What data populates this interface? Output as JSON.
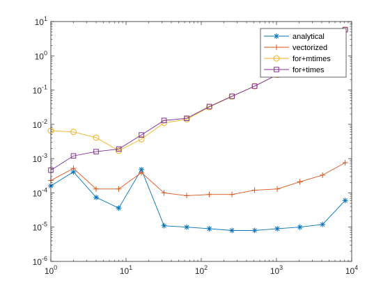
{
  "chart_data": {
    "type": "line",
    "xscale": "log",
    "yscale": "log",
    "xlim": [
      1,
      10000
    ],
    "ylim": [
      1e-06,
      10
    ],
    "grid": false,
    "legend_position": "top-right",
    "x_ticks": [
      {
        "value": 1,
        "base": "10",
        "exp": "0"
      },
      {
        "value": 10,
        "base": "10",
        "exp": "1"
      },
      {
        "value": 100,
        "base": "10",
        "exp": "2"
      },
      {
        "value": 1000,
        "base": "10",
        "exp": "3"
      },
      {
        "value": 10000,
        "base": "10",
        "exp": "4"
      }
    ],
    "y_ticks": [
      {
        "value": 1e-06,
        "base": "10",
        "exp": "-6"
      },
      {
        "value": 1e-05,
        "base": "10",
        "exp": "-5"
      },
      {
        "value": 0.0001,
        "base": "10",
        "exp": "-4"
      },
      {
        "value": 0.001,
        "base": "10",
        "exp": "-3"
      },
      {
        "value": 0.01,
        "base": "10",
        "exp": "-2"
      },
      {
        "value": 0.1,
        "base": "10",
        "exp": "-1"
      },
      {
        "value": 1,
        "base": "10",
        "exp": "0"
      },
      {
        "value": 10,
        "base": "10",
        "exp": "1"
      }
    ],
    "x": [
      1,
      2,
      4,
      8,
      16,
      32,
      64,
      128,
      256,
      512,
      1024,
      2048,
      4096,
      8192
    ],
    "series": [
      {
        "name": "analytical",
        "color": "#0072bd",
        "marker": "asterisk",
        "values": [
          0.00016,
          0.00041,
          7.4e-05,
          3.6e-05,
          0.00048,
          1.1e-05,
          1e-05,
          9e-06,
          8e-06,
          8e-06,
          9e-06,
          1e-05,
          1.2e-05,
          6e-05
        ]
      },
      {
        "name": "vectorized",
        "color": "#d95319",
        "marker": "plus",
        "values": [
          0.00023,
          0.00052,
          0.00013,
          0.00013,
          0.00039,
          0.0001,
          8.3e-05,
          9e-05,
          9e-05,
          0.00012,
          0.00013,
          0.00021,
          0.00033,
          0.00076
        ]
      },
      {
        "name": "for+mtimes",
        "color": "#edb120",
        "marker": "circle",
        "values": [
          0.0065,
          0.006,
          0.0041,
          0.0017,
          0.0037,
          0.011,
          0.014,
          0.032,
          0.065,
          0.13,
          0.28,
          0.65,
          1.4,
          5.8
        ]
      },
      {
        "name": "for+times",
        "color": "#7e2f8e",
        "marker": "square",
        "values": [
          0.00046,
          0.0012,
          0.0016,
          0.0019,
          0.0049,
          0.013,
          0.015,
          0.033,
          0.066,
          0.13,
          0.28,
          0.65,
          1.4,
          5.8
        ]
      }
    ]
  }
}
